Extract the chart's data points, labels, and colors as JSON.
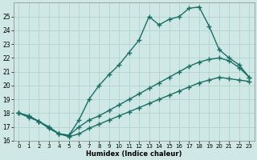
{
  "xlabel": "Humidex (Indice chaleur)",
  "ylabel": "",
  "bg_color": "#cfe8e5",
  "grid_color": "#b0d4d0",
  "line_color": "#1a6e65",
  "xlim": [
    -0.5,
    23.5
  ],
  "ylim": [
    16,
    26
  ],
  "xticks": [
    0,
    1,
    2,
    3,
    4,
    5,
    6,
    7,
    8,
    9,
    10,
    11,
    12,
    13,
    14,
    15,
    16,
    17,
    18,
    19,
    20,
    21,
    22,
    23
  ],
  "yticks": [
    16,
    17,
    18,
    19,
    20,
    21,
    22,
    23,
    24,
    25
  ],
  "line1_x": [
    0,
    1,
    2,
    3,
    4,
    5,
    6,
    7,
    8,
    9,
    10,
    11,
    12,
    13,
    14,
    15,
    16,
    17,
    18,
    19,
    20,
    21,
    22,
    23
  ],
  "line1_y": [
    18.0,
    17.8,
    17.4,
    17.0,
    16.5,
    16.4,
    17.5,
    19.0,
    20.0,
    20.8,
    21.5,
    22.4,
    23.3,
    25.0,
    24.4,
    24.8,
    25.0,
    25.6,
    25.7,
    24.3,
    22.6,
    22.0,
    21.5,
    20.6
  ],
  "line2_x": [
    0,
    1,
    2,
    3,
    4,
    5,
    6,
    7,
    8,
    9,
    10,
    11,
    12,
    13,
    14,
    15,
    16,
    17,
    18,
    19,
    20,
    21,
    22,
    23
  ],
  "line2_y": [
    18.0,
    17.8,
    17.4,
    17.0,
    16.5,
    16.4,
    17.0,
    17.5,
    17.8,
    18.2,
    18.6,
    19.0,
    19.4,
    19.8,
    20.2,
    20.6,
    21.0,
    21.4,
    21.7,
    21.9,
    22.0,
    21.8,
    21.3,
    20.6
  ],
  "line3_x": [
    0,
    1,
    2,
    3,
    4,
    5,
    6,
    7,
    8,
    9,
    10,
    11,
    12,
    13,
    14,
    15,
    16,
    17,
    18,
    19,
    20,
    21,
    22,
    23
  ],
  "line3_y": [
    18.0,
    17.7,
    17.4,
    16.9,
    16.5,
    16.3,
    16.5,
    16.9,
    17.2,
    17.5,
    17.8,
    18.1,
    18.4,
    18.7,
    19.0,
    19.3,
    19.6,
    19.9,
    20.2,
    20.4,
    20.6,
    20.5,
    20.4,
    20.3
  ],
  "marker": "+",
  "markersize": 4,
  "linewidth": 1.0
}
